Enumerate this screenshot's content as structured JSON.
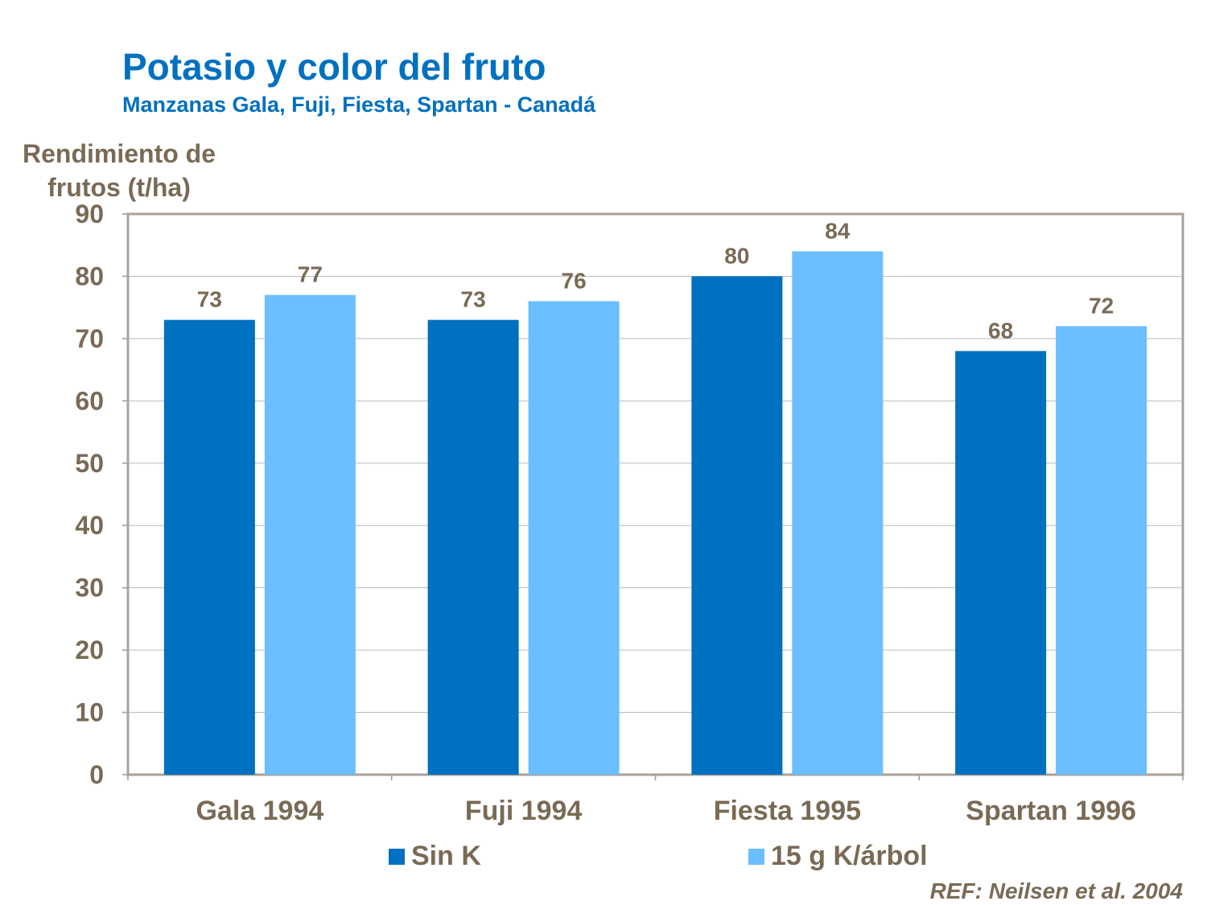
{
  "chart_data": {
    "type": "bar",
    "title": "Potasio y color del fruto",
    "subtitle": "Manzanas Gala, Fuji, Fiesta, Spartan - Canadá",
    "ylabel": "Rendimiento de frutos (t/ha)",
    "xlabel": "",
    "ylim": [
      0,
      90
    ],
    "yticks": [
      0,
      10,
      20,
      30,
      40,
      50,
      60,
      70,
      80,
      90
    ],
    "grid": true,
    "legend_position": "bottom",
    "categories": [
      "Gala 1994",
      "Fuji 1994",
      "Fiesta 1995",
      "Spartan 1996"
    ],
    "series": [
      {
        "name": "Sin K",
        "values": [
          73,
          73,
          80,
          68
        ],
        "color": "#0070C0"
      },
      {
        "name": "15 g K/árbol",
        "values": [
          77,
          76,
          84,
          72
        ],
        "color": "#6BBEFF"
      }
    ],
    "reference": "REF: Neilsen et al. 2004"
  }
}
